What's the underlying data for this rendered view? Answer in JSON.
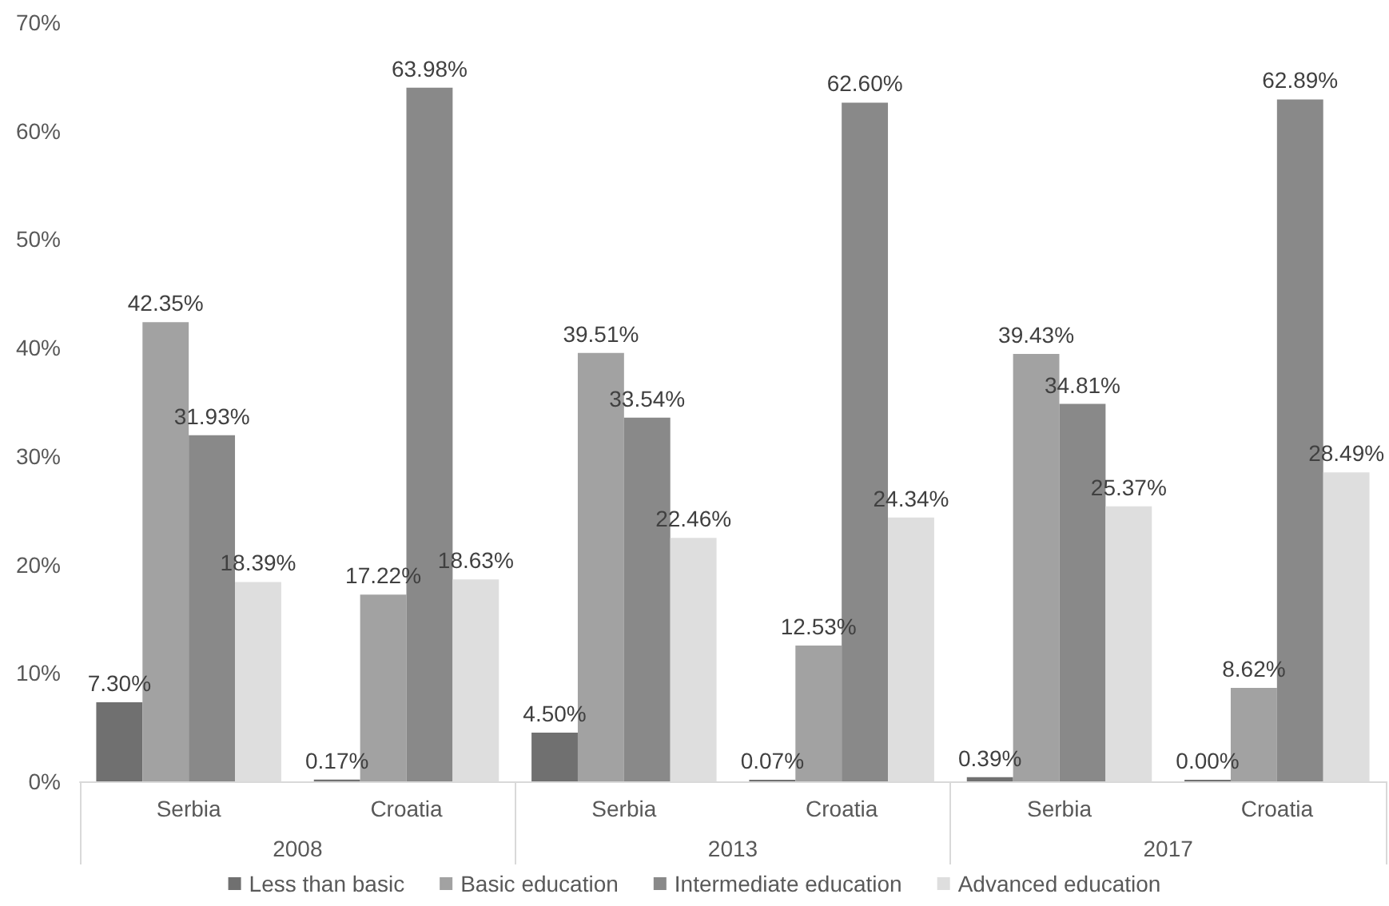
{
  "chart_data": {
    "type": "bar",
    "categories": [
      "Serbia",
      "Croatia",
      "Serbia",
      "Croatia",
      "Serbia",
      "Croatia"
    ],
    "annotations": [
      "2008",
      "2013",
      "2017"
    ],
    "series": [
      {
        "name": "Less than basic",
        "color": "#707070",
        "values": [
          7.3,
          0.17,
          4.5,
          0.07,
          0.39,
          0.0
        ],
        "value_labels": [
          "7.30%",
          "0.17%",
          "4.50%",
          "0.07%",
          "0.39%",
          "0.00%"
        ]
      },
      {
        "name": "Basic education",
        "color": "#a2a2a2",
        "values": [
          42.35,
          17.22,
          39.51,
          12.53,
          39.43,
          8.62
        ],
        "value_labels": [
          "42.35%",
          "17.22%",
          "39.51%",
          "12.53%",
          "39.43%",
          "8.62%"
        ]
      },
      {
        "name": "Intermediate education",
        "color": "#898989",
        "values": [
          31.93,
          63.98,
          33.54,
          62.6,
          34.81,
          62.89
        ],
        "value_labels": [
          "31.93%",
          "63.98%",
          "33.54%",
          "62.60%",
          "34.81%",
          "62.89%"
        ]
      },
      {
        "name": "Advanced education",
        "color": "#dedede",
        "values": [
          18.39,
          18.63,
          22.46,
          24.34,
          25.37,
          28.49
        ],
        "value_labels": [
          "18.39%",
          "18.63%",
          "22.46%",
          "24.34%",
          "25.37%",
          "28.49%"
        ]
      }
    ],
    "ylim": [
      0,
      70
    ],
    "yticks": [
      {
        "value": 0,
        "label": "0%"
      },
      {
        "value": 10,
        "label": "10%"
      },
      {
        "value": 20,
        "label": "20%"
      },
      {
        "value": 30,
        "label": "30%"
      },
      {
        "value": 40,
        "label": "40%"
      },
      {
        "value": 50,
        "label": "50%"
      },
      {
        "value": 60,
        "label": "60%"
      },
      {
        "value": 70,
        "label": "70%"
      }
    ],
    "legend": "bottom"
  }
}
